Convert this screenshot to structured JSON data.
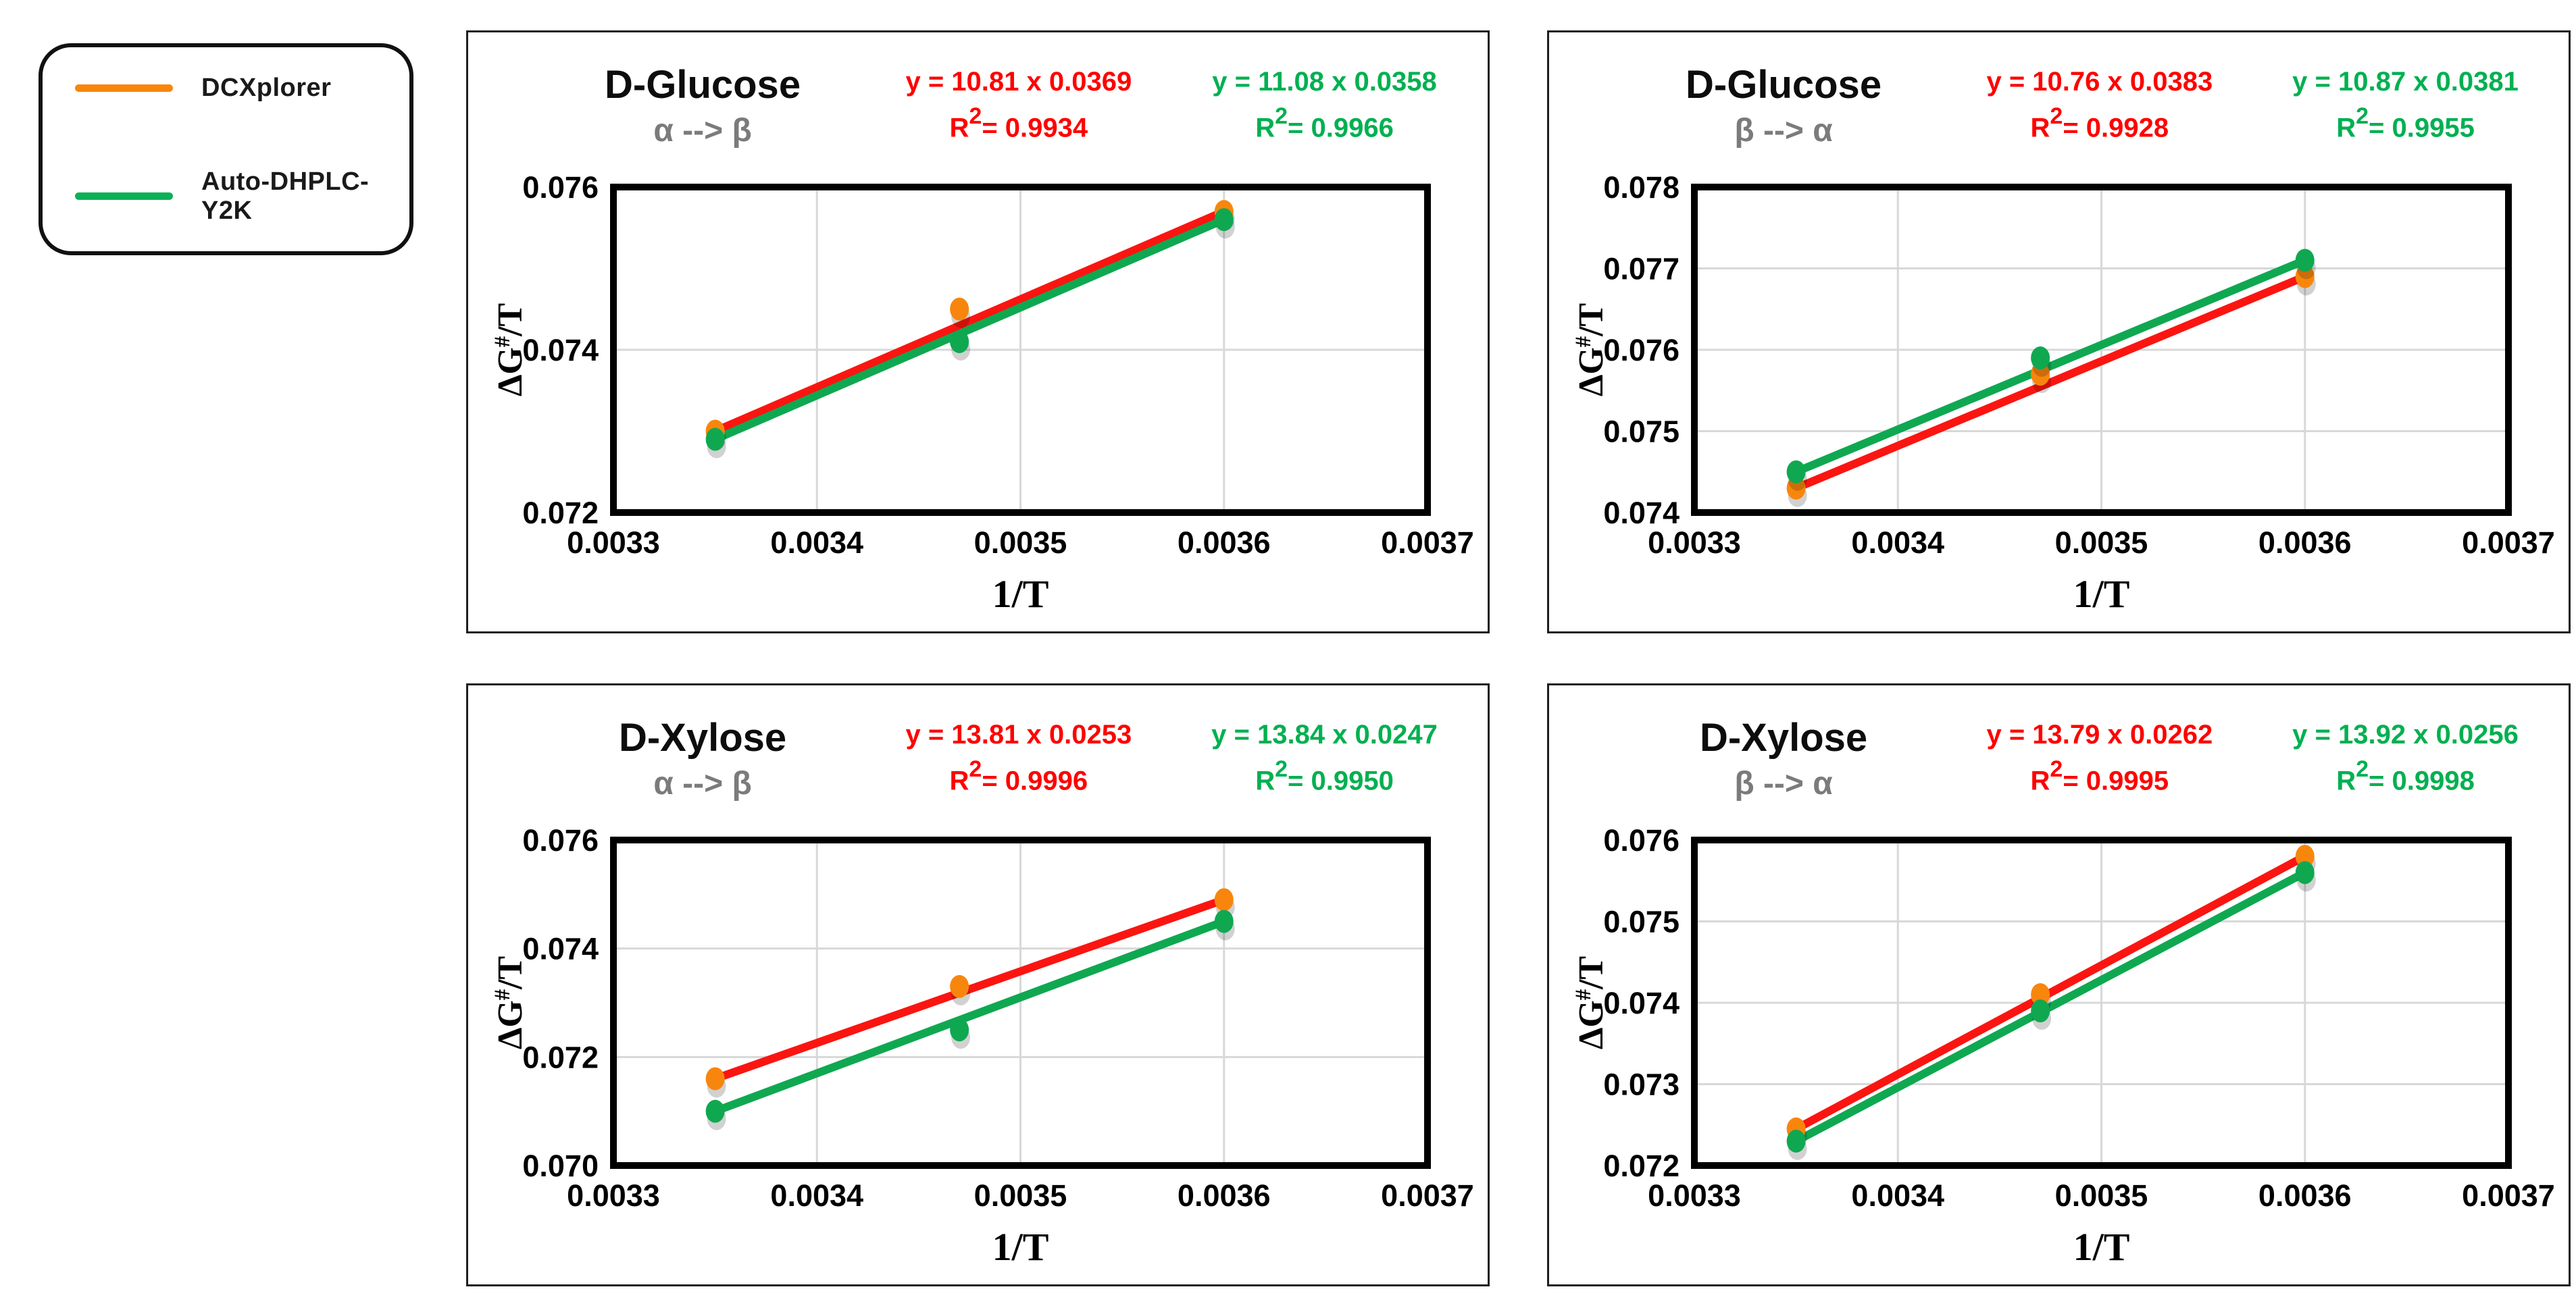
{
  "legend": {
    "items": [
      {
        "label": "DCXplorer",
        "color": "#F8860D"
      },
      {
        "label": "Auto-DHPLC-Y2K",
        "color": "#0CB157"
      }
    ]
  },
  "chart_data": [
    {
      "type": "scatter",
      "title": "D-Glucose",
      "subtitle": "α --> β",
      "xlabel": "1/T",
      "ylabel_parts": {
        "base": "ΔG",
        "sup": "#",
        "rest": "/T"
      },
      "xlim": [
        0.0033,
        0.0037
      ],
      "ylim": [
        0.072,
        0.076
      ],
      "xtick_labels": [
        "0.0033",
        "0.0034",
        "0.0035",
        "0.0036",
        "0.0037"
      ],
      "ytick_labels": [
        "0.072",
        "0.074",
        "0.076"
      ],
      "grid": true,
      "legend_position": "outside-top-left",
      "x": [
        0.00335,
        0.00347,
        0.0036
      ],
      "series": [
        {
          "name": "DCXplorer",
          "equation": "y = 10.81 x 0.0369",
          "r2": "= 0.9934",
          "marker_color": "#F8860D",
          "line_color": "#FB1511",
          "text_color": "#FF0000",
          "values": [
            0.073,
            0.0745,
            0.0757
          ]
        },
        {
          "name": "Auto-DHPLC-Y2K",
          "equation": "y = 11.08 x 0.0358",
          "r2": "= 0.9966",
          "marker_color": "#0FA851",
          "line_color": "#0FA851",
          "text_color": "#00B050",
          "values": [
            0.0729,
            0.0741,
            0.0756
          ]
        }
      ]
    },
    {
      "type": "scatter",
      "title": "D-Glucose",
      "subtitle": "β --> α",
      "xlabel": "1/T",
      "ylabel_parts": {
        "base": "ΔG",
        "sup": "#",
        "rest": "/T"
      },
      "xlim": [
        0.0033,
        0.0037
      ],
      "ylim": [
        0.074,
        0.078
      ],
      "xtick_labels": [
        "0.0033",
        "0.0034",
        "0.0035",
        "0.0036",
        "0.0037"
      ],
      "ytick_labels": [
        "0.074",
        "0.075",
        "0.076",
        "0.077",
        "0.078"
      ],
      "grid": true,
      "x": [
        0.00335,
        0.00347,
        0.0036
      ],
      "series": [
        {
          "name": "DCXplorer",
          "equation": "y = 10.76 x 0.0383",
          "r2": "= 0.9928",
          "marker_color": "#F8860D",
          "line_color": "#FB1511",
          "text_color": "#FF0000",
          "values": [
            0.0743,
            0.0757,
            0.0769
          ]
        },
        {
          "name": "Auto-DHPLC-Y2K",
          "equation": "y = 10.87 x 0.0381",
          "r2": "= 0.9955",
          "marker_color": "#0FA851",
          "line_color": "#0FA851",
          "text_color": "#00B050",
          "values": [
            0.0745,
            0.0759,
            0.0771
          ]
        }
      ]
    },
    {
      "type": "scatter",
      "title": "D-Xylose",
      "subtitle": "α --> β",
      "xlabel": "1/T",
      "ylabel_parts": {
        "base": "ΔG",
        "sup": "#",
        "rest": "/T"
      },
      "xlim": [
        0.0033,
        0.0037
      ],
      "ylim": [
        0.07,
        0.076
      ],
      "xtick_labels": [
        "0.0033",
        "0.0034",
        "0.0035",
        "0.0036",
        "0.0037"
      ],
      "ytick_labels": [
        "0.070",
        "0.072",
        "0.074",
        "0.076"
      ],
      "grid": true,
      "x": [
        0.00335,
        0.00347,
        0.0036
      ],
      "series": [
        {
          "name": "DCXplorer",
          "equation": "y = 13.81 x 0.0253",
          "r2": "= 0.9996",
          "marker_color": "#F8860D",
          "line_color": "#FB1511",
          "text_color": "#FF0000",
          "values": [
            0.0716,
            0.0733,
            0.0749
          ]
        },
        {
          "name": "Auto-DHPLC-Y2K",
          "equation": "y = 13.84 x 0.0247",
          "r2": "= 0.9950",
          "marker_color": "#0FA851",
          "line_color": "#0FA851",
          "text_color": "#00B050",
          "values": [
            0.071,
            0.0725,
            0.0745
          ]
        }
      ]
    },
    {
      "type": "scatter",
      "title": "D-Xylose",
      "subtitle": "β --> α",
      "xlabel": "1/T",
      "ylabel_parts": {
        "base": "ΔG",
        "sup": "#",
        "rest": "/T"
      },
      "xlim": [
        0.0033,
        0.0037
      ],
      "ylim": [
        0.072,
        0.076
      ],
      "xtick_labels": [
        "0.0033",
        "0.0034",
        "0.0035",
        "0.0036",
        "0.0037"
      ],
      "ytick_labels": [
        "0.072",
        "0.073",
        "0.074",
        "0.075",
        "0.076"
      ],
      "grid": true,
      "x": [
        0.00335,
        0.00347,
        0.0036
      ],
      "series": [
        {
          "name": "DCXplorer",
          "equation": "y = 13.79 x 0.0262",
          "r2": "= 0.9995",
          "marker_color": "#F8860D",
          "line_color": "#FB1511",
          "text_color": "#FF0000",
          "values": [
            0.07245,
            0.0741,
            0.0758
          ]
        },
        {
          "name": "Auto-DHPLC-Y2K",
          "equation": "y = 13.92 x 0.0256",
          "r2": "= 0.9998",
          "marker_color": "#0FA851",
          "line_color": "#0FA851",
          "text_color": "#00B050",
          "values": [
            0.0723,
            0.0739,
            0.0756
          ]
        }
      ]
    }
  ]
}
